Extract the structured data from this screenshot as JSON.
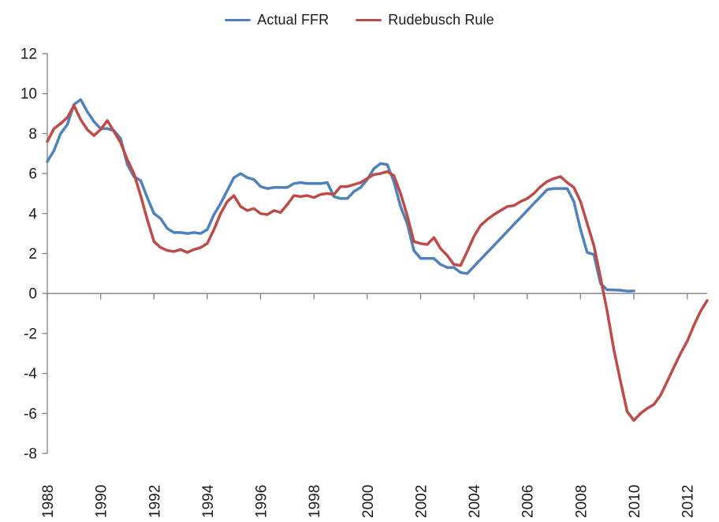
{
  "page": {
    "background": "#ffffff",
    "description": "Line chart comparing the actual federal funds rate with the Rudebusch policy rule, quarterly 1988-2012"
  },
  "legend": {
    "position": "top-center",
    "items": [
      {
        "label": "Actual FFR",
        "color": "#4F81BD"
      },
      {
        "label": "Rudebusch Rule",
        "color": "#BE4B48"
      }
    ]
  },
  "chart_data": {
    "type": "line",
    "title": "",
    "xlabel": "",
    "ylabel": "",
    "grid": "zero-line-only",
    "axis_color": "#808080",
    "text_color": "#1a1a1a",
    "x": {
      "frequency": "quarterly",
      "start_label": "1988",
      "end_label": "2012",
      "total_quarters": 100,
      "ticks_every_quarters": 8,
      "tick_labels": [
        "1988",
        "1990",
        "1992",
        "1994",
        "1996",
        "1998",
        "2000",
        "2002",
        "2004",
        "2006",
        "2008",
        "2010",
        "2012"
      ],
      "tick_label_rotation_deg": -90
    },
    "y": {
      "min": -8,
      "max": 12,
      "step": 2,
      "tick_labels": [
        "12",
        "10",
        "8",
        "6",
        "4",
        "2",
        "0",
        "-2",
        "-4",
        "-6",
        "-8"
      ]
    },
    "series": [
      {
        "name": "Actual FFR",
        "data_name": "actual-ffr-line",
        "color": "#4F81BD",
        "start": "1988Q1",
        "end": "2010Q1",
        "values": [
          6.6,
          7.15,
          8.0,
          8.45,
          9.45,
          9.7,
          9.1,
          8.6,
          8.25,
          8.25,
          8.15,
          7.75,
          6.45,
          5.85,
          5.65,
          4.8,
          4.0,
          3.75,
          3.25,
          3.05,
          3.05,
          3.0,
          3.05,
          3.0,
          3.2,
          3.95,
          4.5,
          5.15,
          5.8,
          6.0,
          5.8,
          5.7,
          5.35,
          5.25,
          5.3,
          5.3,
          5.3,
          5.5,
          5.55,
          5.5,
          5.5,
          5.5,
          5.55,
          4.85,
          4.75,
          4.75,
          5.1,
          5.3,
          5.7,
          6.25,
          6.5,
          6.45,
          5.6,
          4.35,
          3.5,
          2.15,
          1.75,
          1.75,
          1.75,
          1.45,
          1.3,
          1.3,
          1.05,
          1.0,
          1.35,
          1.7,
          2.05,
          2.4,
          2.75,
          3.1,
          3.45,
          3.8,
          4.15,
          4.5,
          4.85,
          5.2,
          5.25,
          5.25,
          5.25,
          4.6,
          3.2,
          2.05,
          1.95,
          0.5,
          0.18,
          0.18,
          0.16,
          0.12,
          0.13
        ]
      },
      {
        "name": "Rudebusch Rule",
        "data_name": "rudebusch-rule-line",
        "color": "#BE4B48",
        "start": "1988Q1",
        "end": "2012Q4",
        "values": [
          7.6,
          8.25,
          8.5,
          8.8,
          9.4,
          8.7,
          8.2,
          7.9,
          8.2,
          8.65,
          8.1,
          7.55,
          6.7,
          6.0,
          4.9,
          3.7,
          2.6,
          2.3,
          2.15,
          2.1,
          2.2,
          2.05,
          2.2,
          2.3,
          2.5,
          3.2,
          4.0,
          4.6,
          4.9,
          4.35,
          4.15,
          4.25,
          4.0,
          3.95,
          4.15,
          4.05,
          4.45,
          4.9,
          4.85,
          4.9,
          4.8,
          4.95,
          5.0,
          4.95,
          5.35,
          5.35,
          5.45,
          5.55,
          5.75,
          5.95,
          6.0,
          6.1,
          5.9,
          5.0,
          3.9,
          2.6,
          2.5,
          2.45,
          2.8,
          2.25,
          1.9,
          1.45,
          1.4,
          2.1,
          2.85,
          3.4,
          3.7,
          3.95,
          4.15,
          4.35,
          4.4,
          4.6,
          4.75,
          5.0,
          5.35,
          5.6,
          5.75,
          5.85,
          5.55,
          5.3,
          4.6,
          3.5,
          2.4,
          0.8,
          -0.9,
          -2.8,
          -4.4,
          -5.9,
          -6.35,
          -6.0,
          -5.75,
          -5.55,
          -5.1,
          -4.4,
          -3.7,
          -3.0,
          -2.4,
          -1.6,
          -0.9,
          -0.35
        ]
      }
    ],
    "legend_position": "top"
  }
}
